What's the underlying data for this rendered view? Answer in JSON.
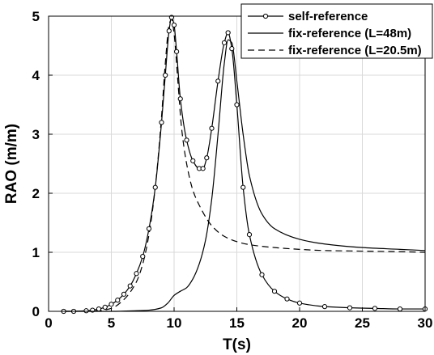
{
  "chart_data": {
    "type": "line",
    "title": "",
    "xlabel": "T(s)",
    "ylabel": "RAO (m/m)",
    "xlim": [
      0,
      30
    ],
    "ylim": [
      0,
      5
    ],
    "xticks": [
      "0",
      "5",
      "10",
      "15",
      "20",
      "25",
      "30"
    ],
    "yticks": [
      "0",
      "1",
      "2",
      "3",
      "4",
      "5"
    ],
    "grid": true,
    "legend_position": "top-right",
    "series": [
      {
        "name": "self-reference",
        "style": "solid line with circle markers",
        "x": [
          1.2,
          2,
          3,
          3.5,
          4,
          4.5,
          5,
          5.5,
          6,
          6.5,
          7,
          7.5,
          8,
          8.5,
          9,
          9.3,
          9.6,
          9.8,
          10,
          10.2,
          10.5,
          11,
          11.5,
          12,
          12.3,
          12.6,
          13,
          13.5,
          14,
          14.3,
          14.6,
          15,
          15.5,
          16,
          17,
          18,
          19,
          20,
          22,
          24,
          26,
          28,
          30
        ],
        "y": [
          0.0,
          0.0,
          0.01,
          0.02,
          0.04,
          0.07,
          0.12,
          0.19,
          0.29,
          0.43,
          0.64,
          0.93,
          1.4,
          2.1,
          3.2,
          4.0,
          4.75,
          4.98,
          4.85,
          4.4,
          3.6,
          2.9,
          2.55,
          2.42,
          2.42,
          2.6,
          3.1,
          3.9,
          4.55,
          4.72,
          4.45,
          3.5,
          2.1,
          1.3,
          0.62,
          0.34,
          0.21,
          0.14,
          0.08,
          0.06,
          0.05,
          0.04,
          0.04
        ]
      },
      {
        "name": "fix-reference (L=48m)",
        "style": "solid line",
        "x": [
          1.2,
          5,
          7,
          8,
          9,
          9.5,
          10,
          10.5,
          11,
          11.5,
          12,
          12.5,
          13,
          13.5,
          14,
          14.3,
          14.6,
          15,
          15.5,
          16,
          17,
          18,
          20,
          22,
          25,
          28,
          30
        ],
        "y": [
          0.0,
          0.0,
          0.01,
          0.02,
          0.06,
          0.14,
          0.27,
          0.34,
          0.4,
          0.55,
          0.8,
          1.2,
          1.9,
          3.0,
          4.2,
          4.6,
          4.55,
          3.9,
          3.0,
          2.3,
          1.65,
          1.4,
          1.22,
          1.14,
          1.08,
          1.05,
          1.03
        ]
      },
      {
        "name": "fix-reference (L=20.5m)",
        "style": "dashed line",
        "x": [
          1.2,
          4,
          5,
          6,
          7,
          7.5,
          8,
          8.5,
          9,
          9.3,
          9.6,
          9.8,
          10,
          10.3,
          10.6,
          11,
          11.5,
          12,
          13,
          14,
          15,
          16,
          18,
          20,
          22,
          25,
          28,
          30
        ],
        "y": [
          0.0,
          0.01,
          0.05,
          0.2,
          0.5,
          0.8,
          1.3,
          2.1,
          3.3,
          4.2,
          4.85,
          4.95,
          4.7,
          3.9,
          3.1,
          2.5,
          2.05,
          1.8,
          1.45,
          1.27,
          1.18,
          1.13,
          1.08,
          1.05,
          1.03,
          1.02,
          1.01,
          1.0
        ]
      }
    ]
  }
}
